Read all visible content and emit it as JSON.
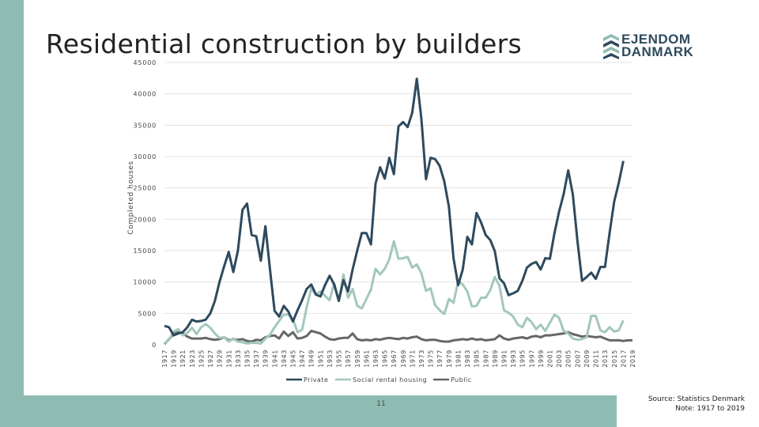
{
  "slide": {
    "title": "Residential construction by builders",
    "page_number": "11",
    "source_line1": "Source: Statistics Denmark",
    "source_line2": "Note: 1917 to 2019",
    "logo_line1": "EJENDOM",
    "logo_line2": "DANMARK",
    "band_color": "#8fbcb2"
  },
  "chart_data": {
    "type": "line",
    "title": "Residential construction by builders",
    "ylabel": "Completed houses",
    "xlabel": "",
    "ylim": [
      0,
      45000
    ],
    "yticks": [
      0,
      5000,
      10000,
      15000,
      20000,
      25000,
      30000,
      35000,
      40000,
      45000
    ],
    "x_start": 1917,
    "x_end": 2019,
    "x_tick_step": 2,
    "grid": true,
    "legend_position": "bottom",
    "series": [
      {
        "name": "Private",
        "color": "#2e4a5e",
        "values": [
          3000,
          2800,
          1500,
          1800,
          2000,
          2800,
          4000,
          3700,
          3800,
          4000,
          5000,
          7000,
          10000,
          12500,
          14800,
          11600,
          15000,
          21500,
          22500,
          17500,
          17300,
          13400,
          18900,
          12000,
          5400,
          4500,
          6200,
          5300,
          3700,
          5500,
          7100,
          8900,
          9600,
          8000,
          7700,
          9500,
          11000,
          9600,
          7000,
          10300,
          8500,
          12000,
          15000,
          17800,
          17800,
          16000,
          25700,
          28300,
          26500,
          29800,
          27200,
          34800,
          35500,
          34700,
          37000,
          42400,
          36000,
          26400,
          29800,
          29600,
          28500,
          26000,
          22000,
          13800,
          9500,
          12000,
          17200,
          16000,
          21000,
          19500,
          17500,
          16700,
          14900,
          10600,
          9800,
          7900,
          8200,
          8600,
          10200,
          12300,
          12900,
          13200,
          12000,
          13800,
          13700,
          17800,
          21200,
          24000,
          27800,
          24000,
          16500,
          10200,
          10800,
          11500,
          10500,
          12400,
          12400,
          17800,
          22800,
          25800,
          29300
        ]
      },
      {
        "name": "Social rental housing",
        "color": "#a3c7bd",
        "values": [
          200,
          800,
          2100,
          2500,
          1500,
          1900,
          2700,
          1700,
          2800,
          3300,
          2700,
          1800,
          1100,
          1200,
          500,
          1000,
          500,
          400,
          200,
          300,
          300,
          200,
          1000,
          1600,
          2800,
          3800,
          4800,
          4800,
          4100,
          2000,
          2400,
          6000,
          9000,
          8000,
          8500,
          7800,
          7100,
          9800,
          7000,
          11200,
          7500,
          8900,
          6200,
          5800,
          7300,
          8800,
          12100,
          11200,
          12100,
          13600,
          16500,
          13700,
          13800,
          14000,
          12300,
          12800,
          11400,
          8600,
          9000,
          6300,
          5500,
          4900,
          7300,
          6700,
          10100,
          9600,
          8500,
          6100,
          6200,
          7500,
          7500,
          8700,
          10800,
          9400,
          5500,
          5100,
          4500,
          3200,
          2800,
          4300,
          3600,
          2500,
          3200,
          2200,
          3500,
          4800,
          4300,
          2200,
          1800,
          1000,
          800,
          900,
          1200,
          4600,
          4600,
          2300,
          2000,
          2800,
          2100,
          2300,
          3900
        ]
      },
      {
        "name": "Public",
        "color": "#666666",
        "values": [
          100,
          900,
          1700,
          2000,
          1800,
          1300,
          1000,
          1000,
          1000,
          1100,
          900,
          800,
          900,
          1200,
          700,
          900,
          800,
          900,
          600,
          500,
          800,
          700,
          1200,
          1400,
          1500,
          1000,
          2100,
          1400,
          2000,
          1000,
          1100,
          1400,
          2200,
          2000,
          1800,
          1300,
          900,
          800,
          1000,
          1100,
          1100,
          1800,
          900,
          700,
          800,
          700,
          900,
          800,
          1000,
          1100,
          1000,
          900,
          1100,
          1000,
          1200,
          1300,
          900,
          700,
          800,
          800,
          600,
          500,
          500,
          700,
          800,
          900,
          800,
          1000,
          800,
          900,
          700,
          800,
          900,
          1500,
          1000,
          800,
          1000,
          1100,
          1200,
          1000,
          1300,
          1400,
          1200,
          1500,
          1500,
          1600,
          1700,
          1800,
          2000,
          1700,
          1500,
          1300,
          1400,
          1300,
          1200,
          1300,
          1000,
          700,
          700,
          700,
          600,
          700,
          700
        ]
      }
    ]
  }
}
